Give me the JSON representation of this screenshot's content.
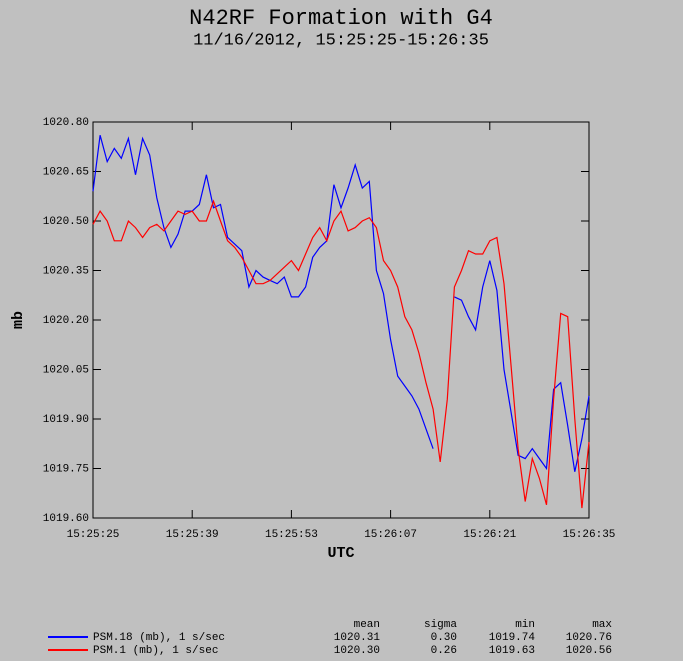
{
  "chart_data": {
    "type": "line",
    "title": "N42RF Formation with G4",
    "subtitle": "11/16/2012, 15:25:25-15:26:35",
    "x_label": "UTC",
    "y_label": "mb",
    "x": [
      "15:25:25",
      "15:25:26",
      "15:25:27",
      "15:25:28",
      "15:25:29",
      "15:25:30",
      "15:25:31",
      "15:25:32",
      "15:25:33",
      "15:25:34",
      "15:25:35",
      "15:25:36",
      "15:25:37",
      "15:25:38",
      "15:25:39",
      "15:25:40",
      "15:25:41",
      "15:25:42",
      "15:25:43",
      "15:25:44",
      "15:25:45",
      "15:25:46",
      "15:25:47",
      "15:25:48",
      "15:25:49",
      "15:25:50",
      "15:25:51",
      "15:25:52",
      "15:25:53",
      "15:25:54",
      "15:25:55",
      "15:25:56",
      "15:25:57",
      "15:25:58",
      "15:25:59",
      "15:26:00",
      "15:26:01",
      "15:26:02",
      "15:26:03",
      "15:26:04",
      "15:26:05",
      "15:26:06",
      "15:26:07",
      "15:26:08",
      "15:26:09",
      "15:26:10",
      "15:26:11",
      "15:26:12",
      "15:26:13",
      "15:26:14",
      "15:26:15",
      "15:26:16",
      "15:26:17",
      "15:26:18",
      "15:26:19",
      "15:26:20",
      "15:26:21",
      "15:26:22",
      "15:26:23",
      "15:26:24",
      "15:26:25",
      "15:26:26",
      "15:26:27",
      "15:26:28",
      "15:26:29",
      "15:26:30",
      "15:26:31",
      "15:26:32",
      "15:26:33",
      "15:26:34",
      "15:26:35"
    ],
    "xticks": [
      "15:25:25",
      "15:25:39",
      "15:25:53",
      "15:26:07",
      "15:26:21",
      "15:26:35"
    ],
    "ylim": [
      1019.6,
      1020.8
    ],
    "yticks": [
      {
        "value": 1019.6,
        "label": "1019.60"
      },
      {
        "value": 1019.75,
        "label": "1019.75"
      },
      {
        "value": 1019.9,
        "label": "1019.90"
      },
      {
        "value": 1020.05,
        "label": "1020.05"
      },
      {
        "value": 1020.2,
        "label": "1020.20"
      },
      {
        "value": 1020.35,
        "label": "1020.35"
      },
      {
        "value": 1020.5,
        "label": "1020.50"
      },
      {
        "value": 1020.65,
        "label": "1020.65"
      },
      {
        "value": 1020.8,
        "label": "1020.80"
      }
    ],
    "series": [
      {
        "name": "PSM.18 (mb), 1 s/sec",
        "color": "#0000ff",
        "values": [
          1020.59,
          1020.76,
          1020.68,
          1020.72,
          1020.69,
          1020.75,
          1020.64,
          1020.75,
          1020.7,
          1020.57,
          1020.48,
          1020.42,
          1020.46,
          1020.53,
          1020.53,
          1020.55,
          1020.64,
          1020.54,
          1020.55,
          1020.45,
          1020.43,
          1020.41,
          1020.3,
          1020.35,
          1020.33,
          1020.32,
          1020.31,
          1020.33,
          1020.27,
          1020.27,
          1020.3,
          1020.39,
          1020.42,
          1020.44,
          1020.61,
          1020.54,
          1020.6,
          1020.67,
          1020.6,
          1020.62,
          1020.35,
          1020.28,
          1020.14,
          1020.03,
          1020.0,
          1019.97,
          1019.93,
          1019.87,
          1019.81,
          null,
          null,
          1020.27,
          1020.26,
          1020.21,
          1020.17,
          1020.3,
          1020.38,
          1020.29,
          1020.05,
          1019.92,
          1019.79,
          1019.78,
          1019.81,
          1019.78,
          1019.75,
          1019.99,
          1020.01,
          1019.88,
          1019.74,
          1019.84,
          1019.97
        ]
      },
      {
        "name": "PSM.1 (mb), 1 s/sec",
        "color": "#ff0000",
        "values": [
          1020.49,
          1020.53,
          1020.5,
          1020.44,
          1020.44,
          1020.5,
          1020.48,
          1020.45,
          1020.48,
          1020.49,
          1020.47,
          1020.5,
          1020.53,
          1020.52,
          1020.53,
          1020.5,
          1020.5,
          1020.56,
          1020.5,
          1020.44,
          1020.42,
          1020.39,
          1020.35,
          1020.31,
          1020.31,
          1020.32,
          1020.34,
          1020.36,
          1020.38,
          1020.35,
          1020.4,
          1020.45,
          1020.48,
          1020.44,
          1020.5,
          1020.53,
          1020.47,
          1020.48,
          1020.5,
          1020.51,
          1020.48,
          1020.38,
          1020.35,
          1020.3,
          1020.21,
          1020.17,
          1020.1,
          1020.01,
          1019.93,
          1019.77,
          1019.96,
          1020.3,
          1020.35,
          1020.41,
          1020.4,
          1020.4,
          1020.44,
          1020.45,
          1020.31,
          1020.06,
          1019.81,
          1019.65,
          1019.78,
          1019.72,
          1019.64,
          1019.96,
          1020.22,
          1020.21,
          1019.9,
          1019.63,
          1019.83
        ]
      }
    ],
    "stats": {
      "columns": [
        "mean",
        "sigma",
        "min",
        "max"
      ],
      "rows": [
        [
          "1020.31",
          "0.30",
          "1019.74",
          "1020.76"
        ],
        [
          "1020.30",
          "0.26",
          "1019.63",
          "1020.56"
        ]
      ]
    }
  }
}
